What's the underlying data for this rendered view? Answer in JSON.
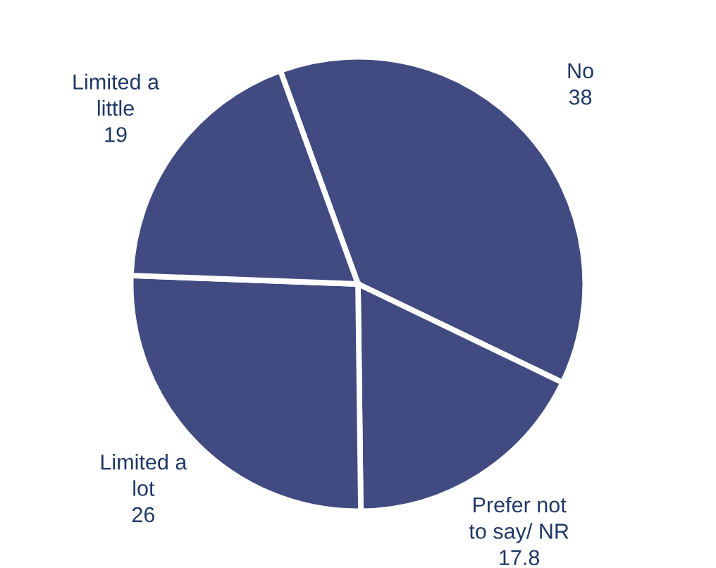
{
  "chart_data": {
    "type": "pie",
    "categories": [
      "No",
      "Prefer not\nto say/ NR",
      "Limited a\nlot",
      "Limited a\nlittle"
    ],
    "values": [
      38,
      17.8,
      26,
      19
    ],
    "colors": [
      "#414b82",
      "#414b82",
      "#414b82",
      "#414b82"
    ],
    "data_labels": true,
    "legend": false
  }
}
